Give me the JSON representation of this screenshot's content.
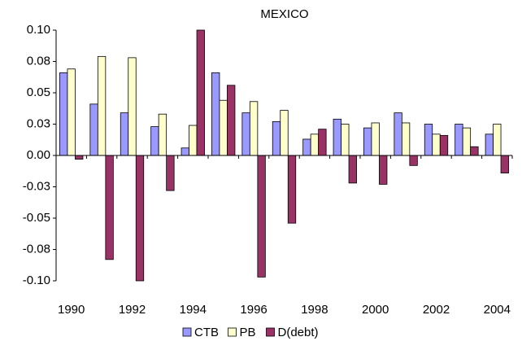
{
  "chart_data": {
    "type": "bar",
    "title": "MEXICO",
    "categories": [
      "1990",
      null,
      "1992",
      null,
      "1994",
      null,
      "1996",
      null,
      "1998",
      null,
      "2000",
      null,
      "2002",
      null,
      "2004"
    ],
    "series": [
      {
        "name": "CTB",
        "color": "#9999ff",
        "values": [
          0.066,
          0.041,
          0.034,
          0.023,
          0.006,
          0.066,
          0.034,
          0.027,
          0.013,
          0.029,
          0.022,
          0.034,
          0.025,
          0.025,
          0.017
        ]
      },
      {
        "name": "PB",
        "color": "#ffffcc",
        "values": [
          0.069,
          0.079,
          0.078,
          0.033,
          0.024,
          0.044,
          0.043,
          0.036,
          0.017,
          0.025,
          0.026,
          0.026,
          0.017,
          0.022,
          0.025
        ]
      },
      {
        "name": "D(debt)",
        "color": "#993366",
        "values": [
          -0.003,
          -0.083,
          -0.1,
          -0.028,
          0.1,
          0.056,
          -0.097,
          -0.054,
          0.021,
          -0.022,
          -0.023,
          -0.008,
          0.016,
          0.007,
          -0.014
        ]
      }
    ],
    "ylim": [
      -0.1,
      0.1
    ],
    "yticks": [
      {
        "value": 0.1,
        "label": "0.10"
      },
      {
        "value": 0.075,
        "label": "0.08"
      },
      0.05,
      {
        "value": 0.025,
        "label": "0.03"
      },
      {
        "value": 0,
        "label": "0.00"
      },
      {
        "value": -0.025,
        "label": "-0.03"
      },
      -0.05,
      {
        "value": -0.075,
        "label": "-0.08"
      },
      {
        "value": -0.1,
        "label": "-0.10"
      }
    ],
    "grid": false,
    "legend": "bottom"
  }
}
